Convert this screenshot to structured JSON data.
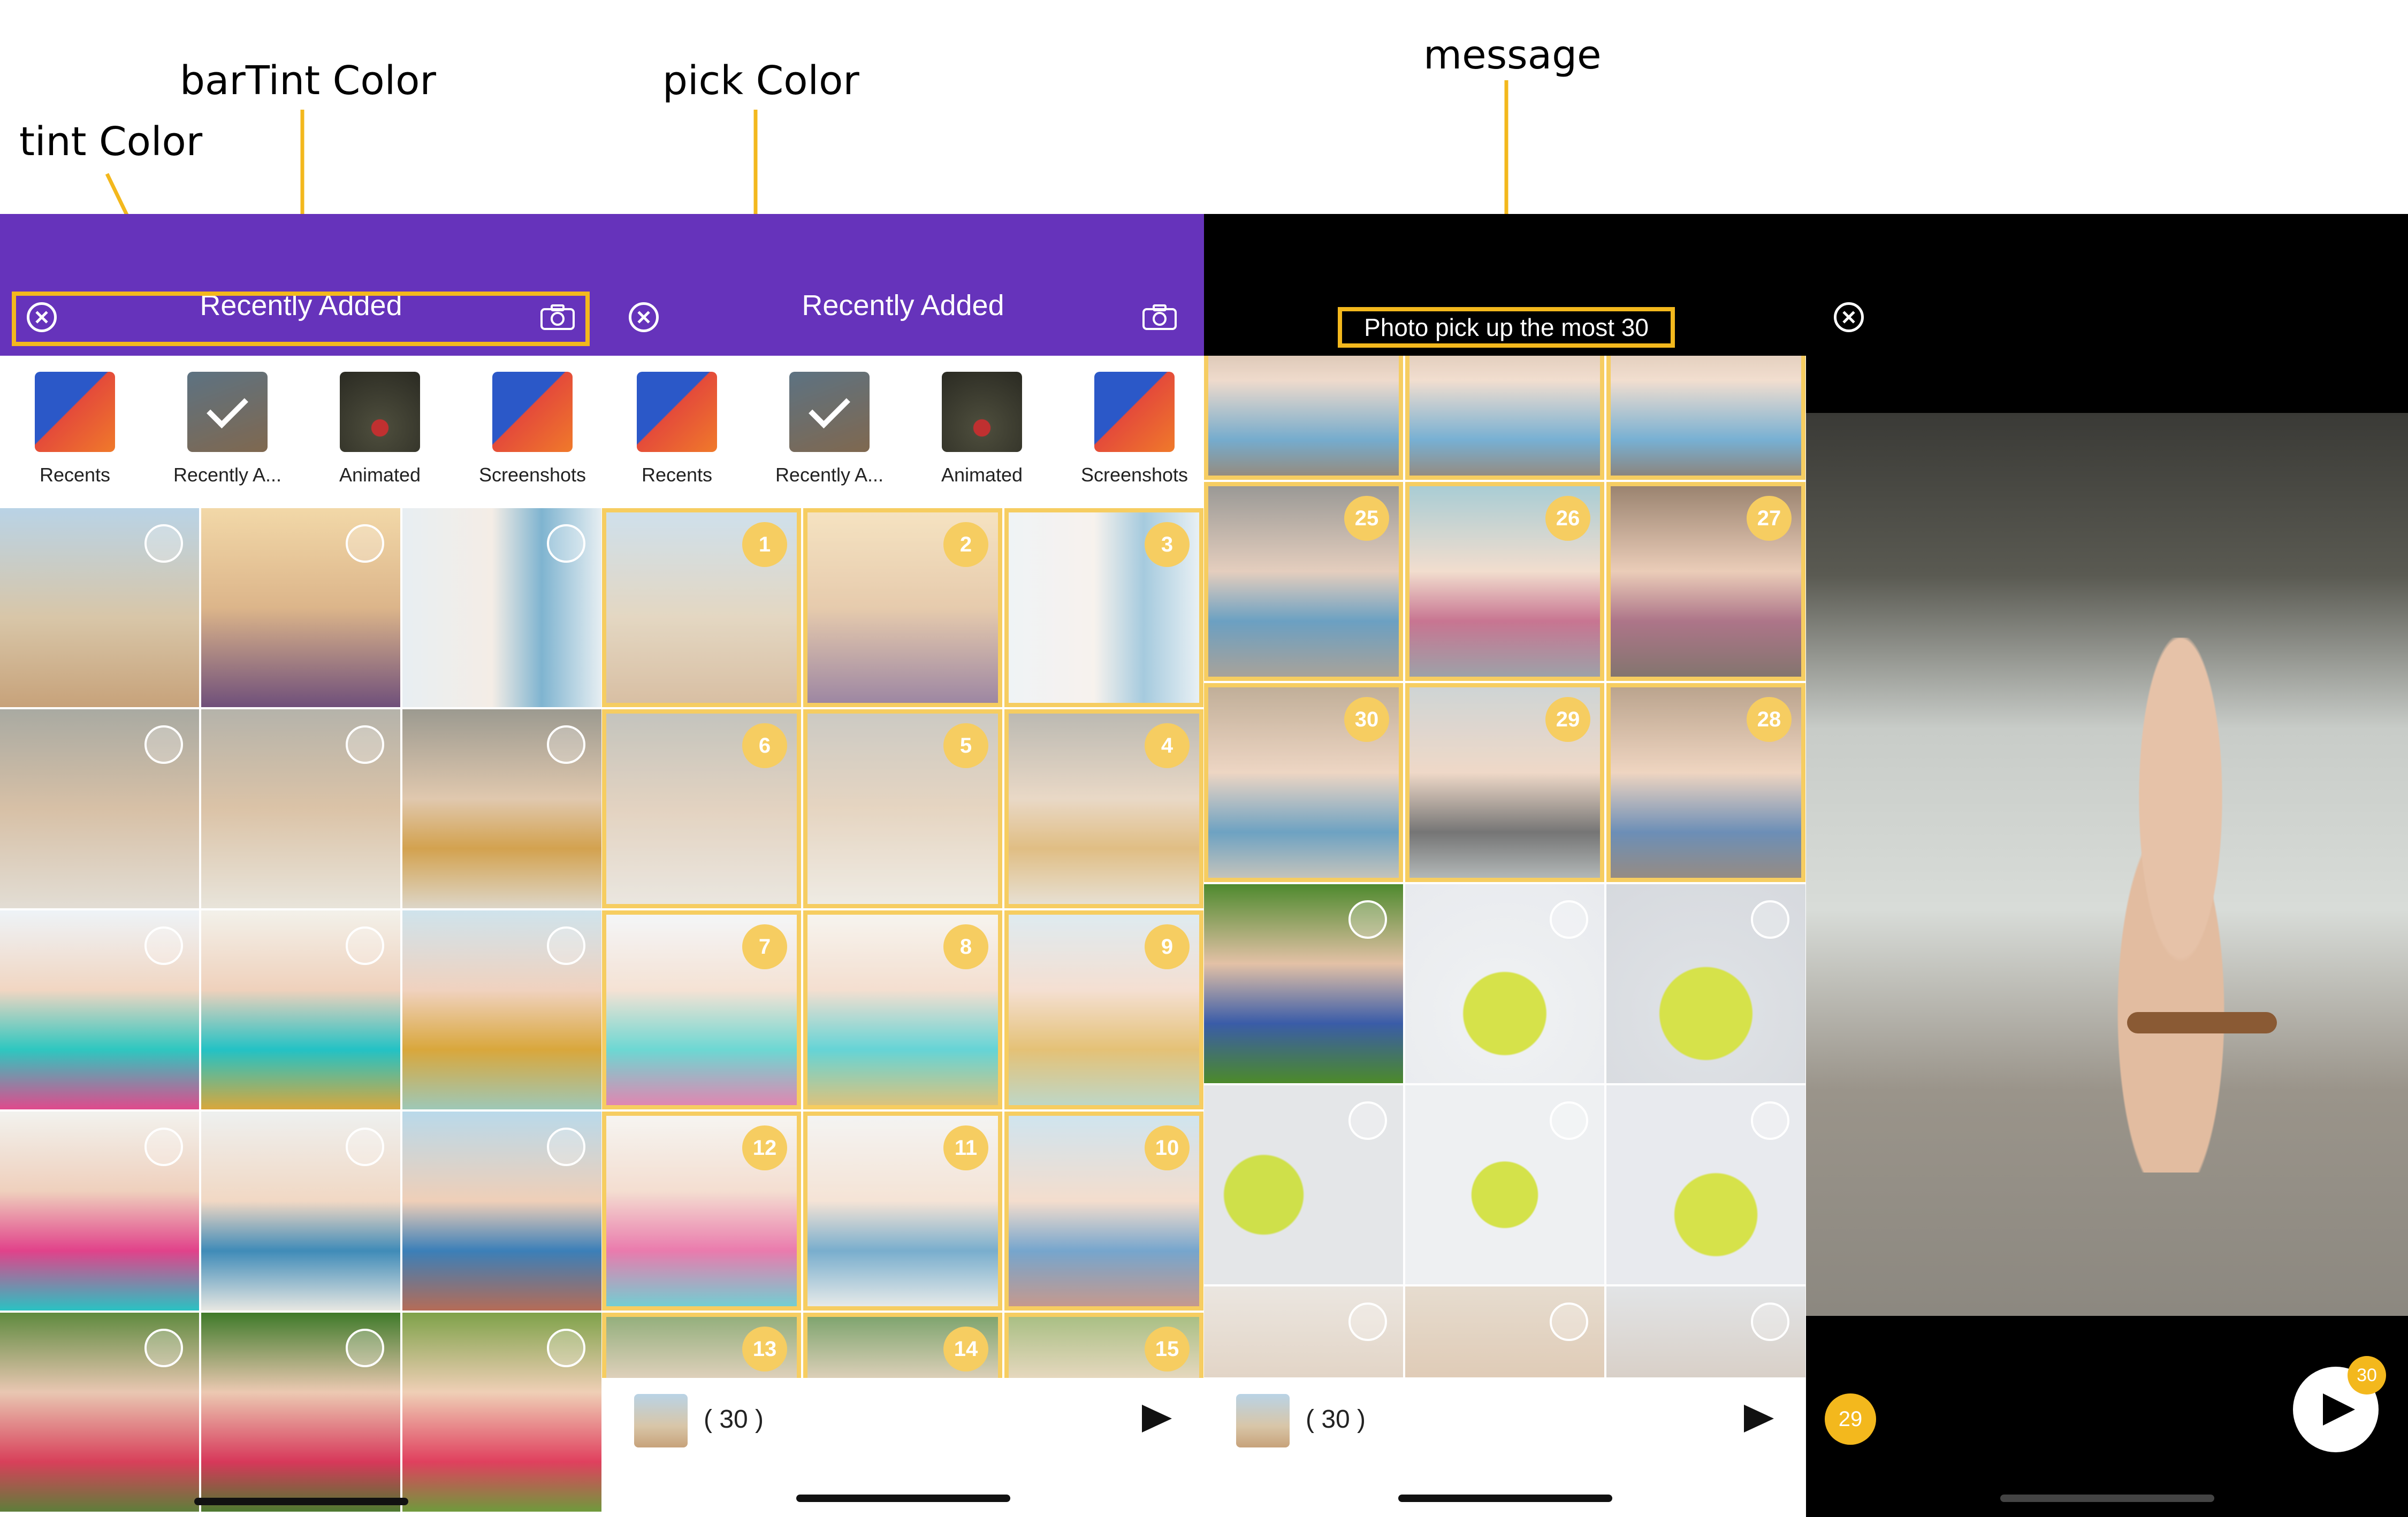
{
  "annotations": {
    "tint_color": "tint Color",
    "bar_tint_color": "barTint Color",
    "pick_color": "pick Color",
    "message": "message"
  },
  "colors": {
    "bar_tint": "#6633bb",
    "pick": "#f3b81d",
    "dark_bar": "#000000"
  },
  "panel1": {
    "nav_title": "Recently Added",
    "albums": [
      {
        "label": "Recents",
        "icon": "ios-wallpaper-icon"
      },
      {
        "label": "Recently A...",
        "icon": "checkmark-icon",
        "selected": true
      },
      {
        "label": "Animated",
        "icon": "photo-thumb"
      },
      {
        "label": "Screenshots",
        "icon": "ios-wallpaper-icon"
      }
    ]
  },
  "panel2": {
    "nav_title": "Recently Added",
    "albums": [
      {
        "label": "Recents"
      },
      {
        "label": "Recently A..."
      },
      {
        "label": "Animated"
      },
      {
        "label": "Screenshots"
      }
    ],
    "badges": [
      "1",
      "2",
      "3",
      "6",
      "5",
      "4",
      "7",
      "8",
      "9",
      "12",
      "11",
      "10",
      "13",
      "14",
      "15"
    ],
    "bottom_count": "( 30 )"
  },
  "panel3": {
    "message": "Photo pick up the most 30",
    "badges_row1": [
      "25",
      "26",
      "27"
    ],
    "badges_row2": [
      "30",
      "29",
      "28"
    ],
    "bottom_count": "( 30 )"
  },
  "panel4": {
    "current_index": "29",
    "send_badge": "30"
  }
}
